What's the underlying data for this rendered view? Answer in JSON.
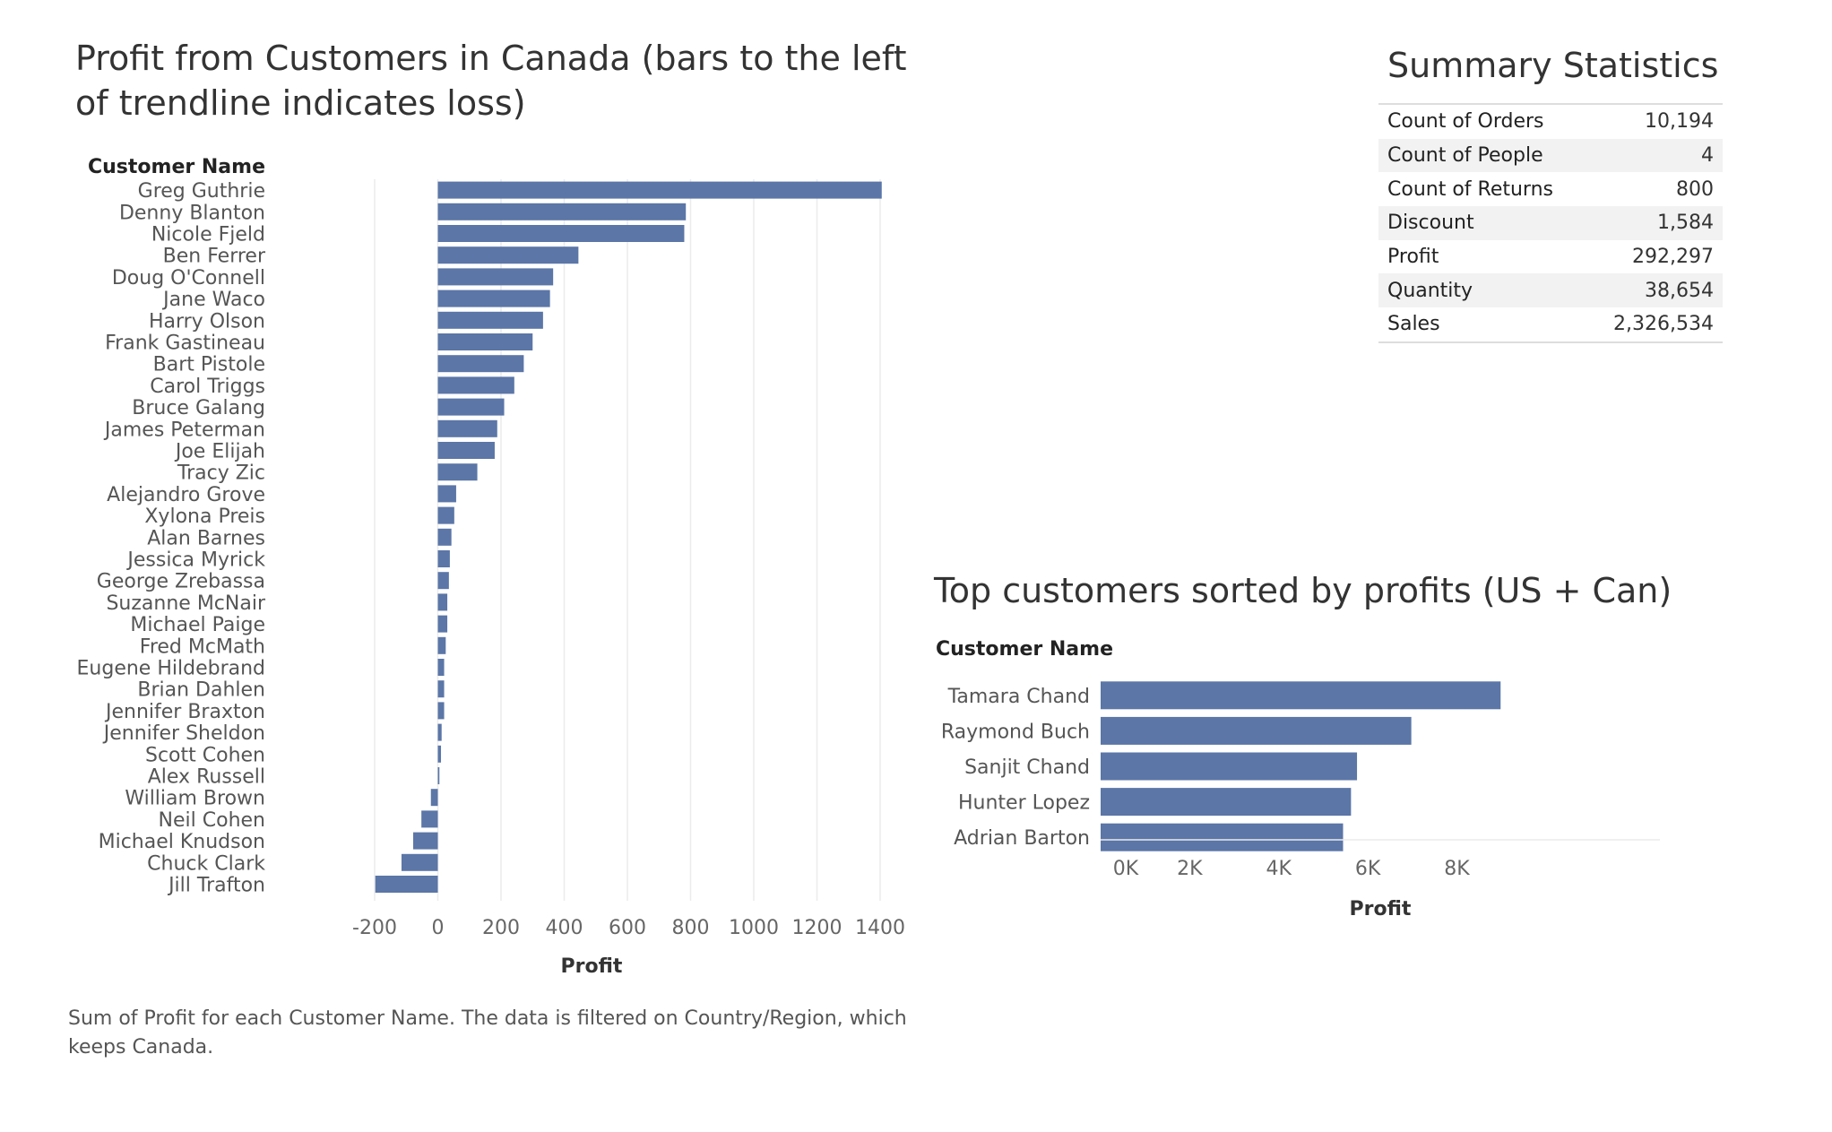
{
  "chart_data": [
    {
      "type": "bar",
      "orientation": "horizontal",
      "title": "Profit from Customers in Canada (bars to the left of trendline indicates loss)",
      "caption": "Sum of Profit for each Customer Name. The data is filtered on Country/Region, which keeps Canada.",
      "ylabel": "Customer Name",
      "xlabel": "Profit",
      "xlim": [
        -200,
        1400
      ],
      "xticks": [
        "-200",
        "0",
        "200",
        "400",
        "600",
        "800",
        "1000",
        "1200",
        "1400"
      ],
      "grid": true,
      "color": "#5b76a7",
      "categories": [
        "Greg Guthrie",
        "Denny Blanton",
        "Nicole Fjeld",
        "Ben Ferrer",
        "Doug O'Connell",
        "Jane Waco",
        "Harry Olson",
        "Frank Gastineau",
        "Bart Pistole",
        "Carol Triggs",
        "Bruce Galang",
        "James Peterman",
        "Joe Elijah",
        "Tracy Zic",
        "Alejandro Grove",
        "Xylona Preis",
        "Alan Barnes",
        "Jessica Myrick",
        "George Zrebassa",
        "Suzanne McNair",
        "Michael Paige",
        "Fred McMath",
        "Eugene Hildebrand",
        "Brian Dahlen",
        "Jennifer Braxton",
        "Jennifer Sheldon",
        "Scott Cohen",
        "Alex Russell",
        "William Brown",
        "Neil Cohen",
        "Michael Knudson",
        "Chuck Clark",
        "Jill Trafton"
      ],
      "values": [
        1405,
        785,
        780,
        445,
        365,
        355,
        333,
        300,
        272,
        242,
        210,
        188,
        180,
        125,
        58,
        52,
        43,
        38,
        35,
        30,
        30,
        25,
        20,
        20,
        20,
        12,
        10,
        5,
        -22,
        -52,
        -78,
        -115,
        -198
      ]
    },
    {
      "type": "bar",
      "orientation": "horizontal",
      "title": "Top customers sorted by profits (US + Can)",
      "ylabel": "Customer Name",
      "xlabel": "Profit",
      "xlim": [
        0,
        9500
      ],
      "xticks": [
        "0K",
        "2K",
        "4K",
        "6K",
        "8K"
      ],
      "grid": false,
      "color": "#5b76a7",
      "categories": [
        "Tamara Chand",
        "Raymond Buch",
        "Sanjit Chand",
        "Hunter Lopez",
        "Adrian Barton"
      ],
      "values": [
        8981,
        6976,
        5757,
        5622,
        5444
      ]
    }
  ],
  "summary": {
    "title": "Summary Statistics",
    "rows": [
      {
        "label": "Count of Orders",
        "value": "10,194"
      },
      {
        "label": "Count of People",
        "value": "4"
      },
      {
        "label": "Count of Returns",
        "value": "800"
      },
      {
        "label": "Discount",
        "value": "1,584"
      },
      {
        "label": "Profit",
        "value": "292,297"
      },
      {
        "label": "Quantity",
        "value": "38,654"
      },
      {
        "label": "Sales",
        "value": "2,326,534"
      }
    ]
  }
}
